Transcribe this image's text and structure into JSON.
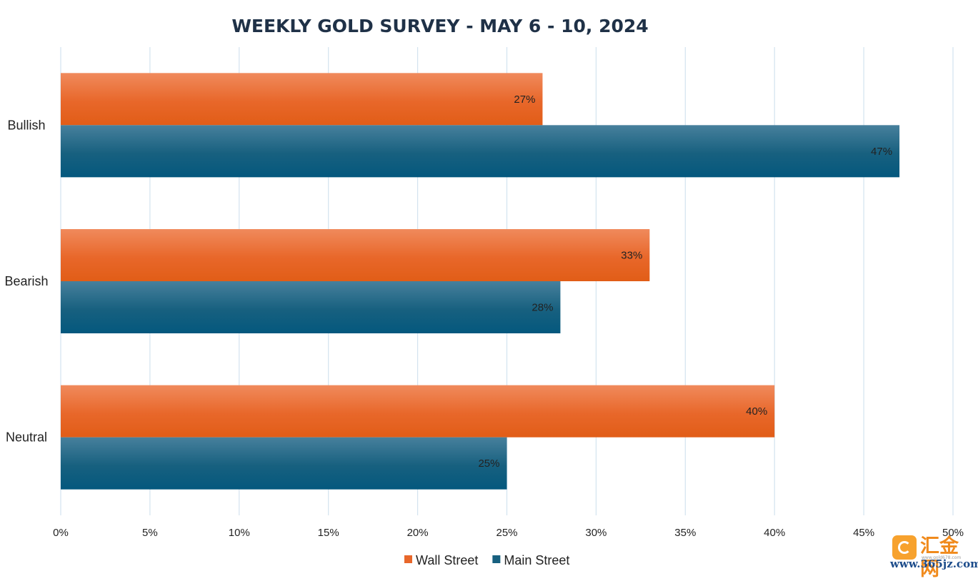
{
  "chart_data": {
    "type": "bar",
    "orientation": "horizontal",
    "title": "WEEKLY GOLD SURVEY - MAY 6 - 10, 2024",
    "categories": [
      "Bullish",
      "Bearish",
      "Neutral"
    ],
    "series": [
      {
        "name": "Wall Street",
        "values": [
          27,
          33,
          40
        ],
        "labels": [
          "27%",
          "33%",
          "40%"
        ],
        "color": "#e8672a",
        "color_light": "#f08a5c",
        "color_dark": "#e15d17"
      },
      {
        "name": "Main Street",
        "values": [
          47,
          28,
          25
        ],
        "labels": [
          "47%",
          "28%",
          "25%"
        ],
        "color": "#17607f",
        "color_light": "#47809c",
        "color_dark": "#04587e"
      }
    ],
    "xlim": [
      0,
      50
    ],
    "x_ticks": [
      0,
      5,
      10,
      15,
      20,
      25,
      30,
      35,
      40,
      45,
      50
    ],
    "x_tick_labels": [
      "0%",
      "5%",
      "10%",
      "15%",
      "20%",
      "25%",
      "30%",
      "35%",
      "40%",
      "45%",
      "50%"
    ],
    "grid": "vertical",
    "grid_color": "#d3e3ef",
    "legend_position": "bottom"
  },
  "watermark": {
    "name": "汇金网",
    "small": "www.gold678.com",
    "site": "www.365jz.com",
    "logo_color": "#f7a22e",
    "name_color": "#f08a1c"
  }
}
